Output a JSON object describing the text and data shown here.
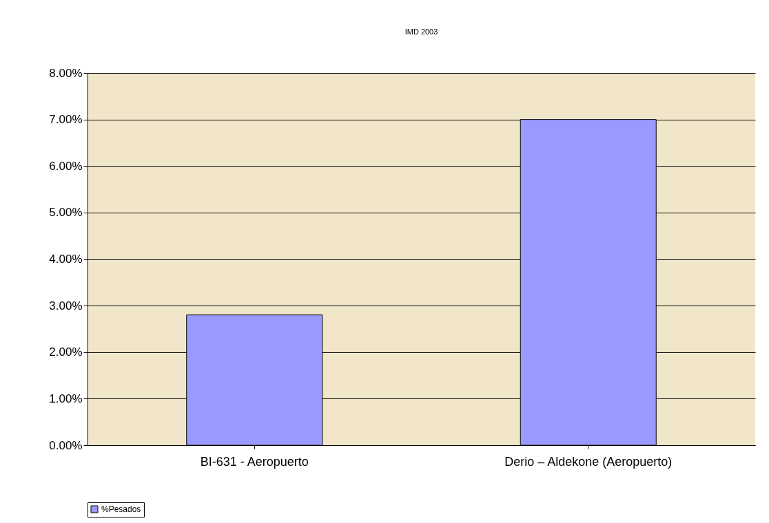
{
  "chart_data": {
    "type": "bar",
    "title": "IMD 2003",
    "categories": [
      "BI-631 - Aeropuerto",
      "Derio – Aldekone (Aeropuerto)"
    ],
    "series": [
      {
        "name": "%Pesados",
        "color": "#9999ff",
        "values": [
          2.8,
          7.0
        ]
      }
    ],
    "ylim": [
      0,
      8
    ],
    "yticks": [
      {
        "value": 0,
        "label": "0.00%"
      },
      {
        "value": 1,
        "label": "1.00%"
      },
      {
        "value": 2,
        "label": "2.00%"
      },
      {
        "value": 3,
        "label": "3.00%"
      },
      {
        "value": 4,
        "label": "4.00%"
      },
      {
        "value": 5,
        "label": "5.00%"
      },
      {
        "value": 6,
        "label": "6.00%"
      },
      {
        "value": 7,
        "label": "7.00%"
      },
      {
        "value": 8,
        "label": "8.00%"
      }
    ],
    "grid": "y",
    "legend": "bottom"
  }
}
